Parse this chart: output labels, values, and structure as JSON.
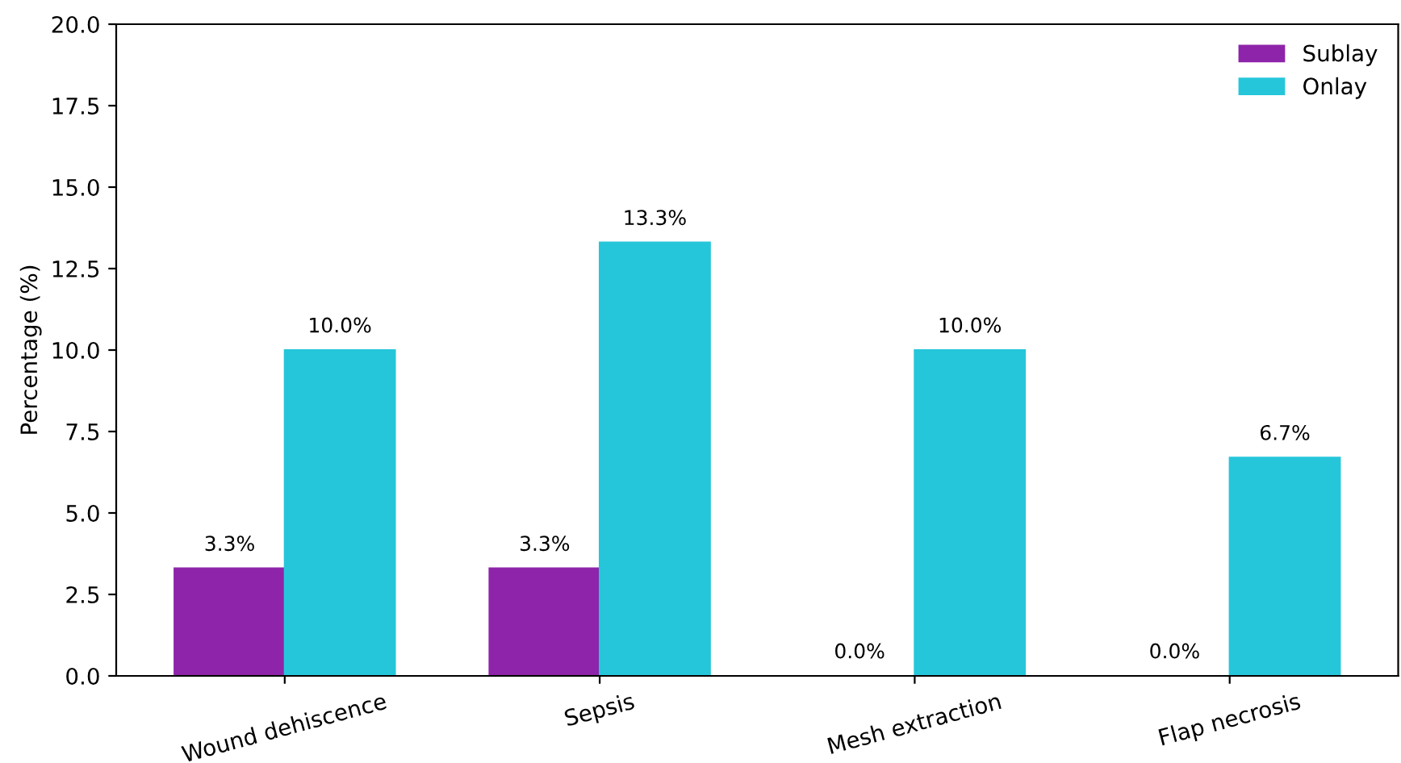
{
  "chart_data": {
    "type": "bar",
    "ylabel": "Percentage (%)",
    "categories": [
      "Wound dehiscence",
      "Sepsis",
      "Mesh extraction",
      "Flap necrosis"
    ],
    "series": [
      {
        "name": "Sublay",
        "color": "#8e24aa",
        "values": [
          3.3,
          3.3,
          0.0,
          0.0
        ],
        "value_labels": [
          "3.3%",
          "3.3%",
          "0.0%",
          "0.0%"
        ]
      },
      {
        "name": "Onlay",
        "color": "#26c6da",
        "values": [
          10.0,
          13.3,
          10.0,
          6.7
        ],
        "value_labels": [
          "10.0%",
          "13.3%",
          "10.0%",
          "6.7%"
        ]
      }
    ],
    "ylim": [
      0,
      20
    ],
    "yticks": [
      {
        "value": 0,
        "label": "0.0"
      },
      {
        "value": 2.5,
        "label": "2.5"
      },
      {
        "value": 5,
        "label": "5.0"
      },
      {
        "value": 7.5,
        "label": "7.5"
      },
      {
        "value": 10,
        "label": "10.0"
      },
      {
        "value": 12.5,
        "label": "12.5"
      },
      {
        "value": 15,
        "label": "15.0"
      },
      {
        "value": 17.5,
        "label": "17.5"
      },
      {
        "value": 20,
        "label": "20.0"
      }
    ],
    "legend": "top right",
    "grid": false
  }
}
